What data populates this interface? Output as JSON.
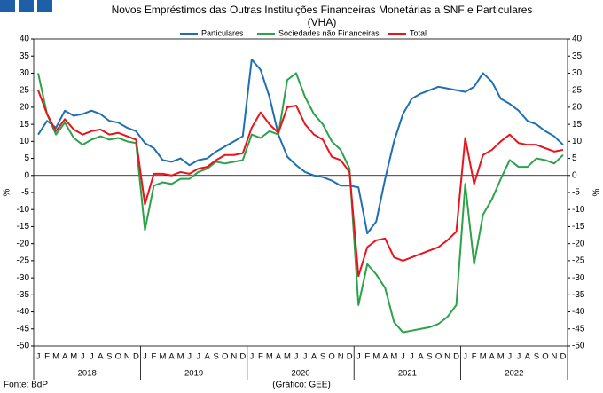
{
  "chart_data": {
    "type": "line",
    "title": "Novos Empréstimos das Outras Instituições Financeiras Monetárias a SNF e Particulares",
    "subtitle": "(VHA)",
    "ylabel": "%",
    "y2label": "%",
    "source": "Fonte: BdP",
    "credit": "(Gráfico: GEE)",
    "categories": [
      "J",
      "F",
      "M",
      "A",
      "M",
      "J",
      "J",
      "A",
      "S",
      "O",
      "N",
      "D",
      "J",
      "F",
      "M",
      "A",
      "M",
      "J",
      "J",
      "A",
      "S",
      "O",
      "N",
      "D",
      "J",
      "F",
      "M",
      "A",
      "M",
      "J",
      "J",
      "A",
      "S",
      "O",
      "N",
      "D",
      "J",
      "F",
      "M",
      "A",
      "M",
      "J",
      "J",
      "A",
      "S",
      "O",
      "N",
      "D",
      "J",
      "F",
      "M",
      "A",
      "M",
      "J",
      "J",
      "A",
      "S",
      "O",
      "N",
      "D"
    ],
    "year_labels": [
      "2018",
      "2019",
      "2020",
      "2021",
      "2022"
    ],
    "series": [
      {
        "name": "Particulares",
        "color": "#1f6fb4",
        "values": [
          12,
          16,
          14,
          19,
          17.5,
          18,
          19,
          18,
          16,
          15.5,
          14,
          13,
          9.5,
          8,
          4.5,
          4,
          5,
          3,
          4.5,
          5,
          7,
          8.5,
          10,
          11.5,
          34,
          31,
          23,
          12,
          5.5,
          3,
          1,
          0,
          -0.5,
          -1.5,
          -3,
          -3,
          -3.5,
          -17,
          -13.5,
          -1,
          10,
          18,
          22.5,
          24,
          25,
          26,
          25.5,
          25,
          24.5,
          26,
          30,
          27.5,
          22.5,
          21,
          19,
          16,
          15,
          13,
          11.5,
          9
        ]
      },
      {
        "name": "Sociedades não Financeiras",
        "color": "#2ca24a",
        "values": [
          30,
          18,
          12,
          15.5,
          11,
          9,
          10.5,
          11.5,
          10.5,
          11,
          10,
          9.5,
          -16,
          -3,
          -2,
          -2.5,
          -1,
          -1,
          1,
          2,
          4,
          3.5,
          4,
          4.5,
          12,
          11,
          13,
          12,
          28,
          30,
          23,
          18,
          15,
          10,
          7.5,
          2,
          -38,
          -26,
          -29,
          -33,
          -43,
          -46,
          -45.5,
          -45,
          -44.5,
          -43.5,
          -41.5,
          -38,
          -2.5,
          -26,
          -11.5,
          -7,
          -1,
          4.5,
          2.5,
          2.5,
          5,
          4.5,
          3.5,
          6
        ]
      },
      {
        "name": "Total",
        "color": "#e8141b",
        "values": [
          25,
          18,
          13,
          16.5,
          13.5,
          12,
          13,
          13.5,
          12,
          12.5,
          11.5,
          10.5,
          -8.5,
          0.5,
          0.5,
          0,
          1,
          0.5,
          2,
          2.5,
          4.5,
          6,
          6,
          6.5,
          14,
          18.5,
          15,
          12.5,
          20,
          20.5,
          15,
          12,
          10.5,
          5.5,
          4.5,
          1,
          -29.5,
          -21,
          -19,
          -18.5,
          -24,
          -25,
          -24,
          -23,
          -22,
          -21,
          -19,
          -16.5,
          11,
          -2.5,
          6,
          7.5,
          10,
          12,
          9.5,
          9,
          9,
          8,
          7,
          7.5
        ]
      }
    ],
    "ylim": [
      -50,
      40
    ],
    "yticks": [
      -50,
      -45,
      -40,
      -35,
      -30,
      -25,
      -20,
      -15,
      -10,
      -5,
      0,
      5,
      10,
      15,
      20,
      25,
      30,
      35,
      40
    ],
    "y2lim": [
      -50,
      40
    ],
    "y2ticks": [
      -50,
      -45,
      -40,
      -35,
      -30,
      -25,
      -20,
      -15,
      -10,
      -5,
      0,
      5,
      10,
      15,
      20,
      25,
      30,
      35,
      40
    ],
    "grid": false
  }
}
